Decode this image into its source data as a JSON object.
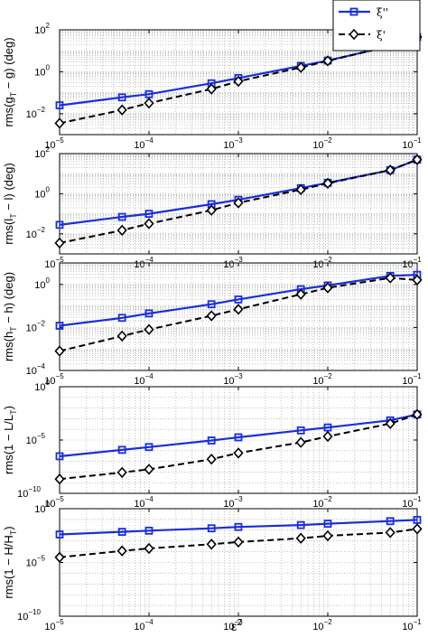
{
  "chart_data": [
    {
      "type": "line",
      "ylabel": "rms(g_T − g) (deg)",
      "ylabel_parts": {
        "pre": "rms(g",
        "sub": "T",
        "post": " − g) (deg)"
      },
      "xscale": "log",
      "yscale": "log",
      "xlim": [
        1e-05,
        0.1
      ],
      "ylim": [
        0.001,
        100
      ],
      "x_tick_labels": [
        "10−5",
        "10−4",
        "10−3",
        "10−2",
        "10−1"
      ],
      "y_ticks": [
        {
          "exp": "2",
          "value": 100
        },
        {
          "exp": "0",
          "value": 1
        },
        {
          "exp": "−2",
          "value": 0.01
        }
      ],
      "grid": true,
      "series": [
        {
          "x": [
            1e-05,
            5e-05,
            0.0001,
            0.0005,
            0.001,
            0.005,
            0.01,
            0.05,
            0.1
          ],
          "y": [
            0.025,
            0.06,
            0.085,
            0.28,
            0.5,
            1.9,
            3.4,
            17,
            45
          ]
        },
        {
          "x": [
            1e-05,
            5e-05,
            0.0001,
            0.0005,
            0.001,
            0.005,
            0.01,
            0.05,
            0.1
          ],
          "y": [
            0.0035,
            0.015,
            0.032,
            0.15,
            0.35,
            1.6,
            3.3,
            17,
            45
          ]
        }
      ]
    },
    {
      "type": "line",
      "ylabel": "rms(l_T − l) (deg)",
      "ylabel_parts": {
        "pre": "rms(l",
        "sub": "T",
        "post": " − l) (deg)"
      },
      "xscale": "log",
      "yscale": "log",
      "xlim": [
        1e-05,
        0.1
      ],
      "ylim": [
        0.001,
        100
      ],
      "x_tick_labels": [
        "10−5",
        "10−4",
        "10−3",
        "10−2",
        "10−1"
      ],
      "y_ticks": [
        {
          "exp": "2",
          "value": 100
        },
        {
          "exp": "0",
          "value": 1
        },
        {
          "exp": "−2",
          "value": 0.01
        }
      ],
      "grid": true,
      "series": [
        {
          "x": [
            1e-05,
            5e-05,
            0.0001,
            0.0005,
            0.001,
            0.005,
            0.01,
            0.05,
            0.1
          ],
          "y": [
            0.028,
            0.07,
            0.1,
            0.3,
            0.5,
            1.9,
            3.5,
            15,
            50
          ]
        },
        {
          "x": [
            1e-05,
            5e-05,
            0.0001,
            0.0005,
            0.001,
            0.005,
            0.01,
            0.05,
            0.1
          ],
          "y": [
            0.0035,
            0.015,
            0.032,
            0.15,
            0.35,
            1.6,
            3.3,
            15,
            50
          ]
        }
      ]
    },
    {
      "type": "line",
      "ylabel": "rms(h_T − h) (deg)",
      "ylabel_parts": {
        "pre": "rms(h",
        "sub": "T",
        "post": " − h) (deg)"
      },
      "xscale": "log",
      "yscale": "log",
      "xlim": [
        1e-05,
        0.1
      ],
      "ylim": [
        0.0001,
        10
      ],
      "x_tick_labels": [
        "10−5",
        "10−4",
        "10−3",
        "10−2",
        "10−1"
      ],
      "y_ticks": [
        {
          "exp": "0",
          "value": 1
        },
        {
          "exp": "−2",
          "value": 0.01
        },
        {
          "exp": "−4",
          "value": 0.0001
        }
      ],
      "grid": true,
      "series": [
        {
          "x": [
            1e-05,
            5e-05,
            0.0001,
            0.0005,
            0.001,
            0.005,
            0.01,
            0.05,
            0.1
          ],
          "y": [
            0.012,
            0.028,
            0.045,
            0.12,
            0.2,
            0.6,
            0.9,
            2.5,
            2.8
          ]
        },
        {
          "x": [
            1e-05,
            5e-05,
            0.0001,
            0.0005,
            0.001,
            0.005,
            0.01,
            0.05,
            0.1
          ],
          "y": [
            0.0008,
            0.004,
            0.008,
            0.035,
            0.07,
            0.35,
            0.7,
            2.0,
            1.6
          ]
        }
      ]
    },
    {
      "type": "line",
      "ylabel": "rms(1 − L/L_T)",
      "ylabel_parts": {
        "pre": "rms(1 − L/L",
        "sub": "T",
        "post": ")"
      },
      "xscale": "log",
      "yscale": "log",
      "xlim": [
        1e-05,
        0.1
      ],
      "ylim": [
        1e-10,
        1
      ],
      "x_tick_labels": [
        "10−5",
        "10−4",
        "10−3",
        "10−2",
        "10−1"
      ],
      "y_ticks": [
        {
          "exp": "0",
          "value": 1
        },
        {
          "exp": "−5",
          "value": 1e-05
        },
        {
          "exp": "−10",
          "value": 1e-10
        }
      ],
      "grid": true,
      "series": [
        {
          "x": [
            1e-05,
            5e-05,
            0.0001,
            0.0005,
            0.001,
            0.005,
            0.01,
            0.05,
            0.1
          ],
          "y": [
            3e-07,
            1.2e-06,
            2.2e-06,
            9e-06,
            1.8e-05,
            8e-05,
            0.00015,
            0.0007,
            0.0025
          ]
        },
        {
          "x": [
            1e-05,
            5e-05,
            0.0001,
            0.0005,
            0.001,
            0.005,
            0.01,
            0.05,
            0.1
          ],
          "y": [
            2.2e-09,
            9e-09,
            1.8e-08,
            1.6e-07,
            6e-07,
            6e-06,
            2.2e-05,
            0.00035,
            0.0025
          ]
        }
      ]
    },
    {
      "type": "line",
      "ylabel": "rms(1 − H/H_T)",
      "ylabel_parts": {
        "pre": "rms(1 − H/H",
        "sub": "T",
        "post": ")"
      },
      "xscale": "log",
      "yscale": "log",
      "xlim": [
        1e-05,
        0.1
      ],
      "ylim": [
        1e-10,
        1
      ],
      "x_tick_labels": [
        "10−5",
        "10−4",
        "10−3",
        "10−2",
        "10−1"
      ],
      "y_ticks": [
        {
          "exp": "0",
          "value": 1
        },
        {
          "exp": "−5",
          "value": 1e-05
        },
        {
          "exp": "−10",
          "value": 1e-10
        }
      ],
      "grid": true,
      "series": [
        {
          "x": [
            1e-05,
            5e-05,
            0.0001,
            0.0005,
            0.001,
            0.005,
            0.01,
            0.05,
            0.1
          ],
          "y": [
            0.004,
            0.007,
            0.009,
            0.015,
            0.02,
            0.03,
            0.04,
            0.07,
            0.09
          ]
        },
        {
          "x": [
            1e-05,
            5e-05,
            0.0001,
            0.0005,
            0.001,
            0.005,
            0.01,
            0.05,
            0.1
          ],
          "y": [
            3e-05,
            0.00012,
            0.0002,
            0.0005,
            0.0008,
            0.0018,
            0.003,
            0.006,
            0.013
          ]
        }
      ]
    }
  ],
  "xlabel": "ε²",
  "xlabel_parts": {
    "base": "ε",
    "sup": "2"
  },
  "legend": {
    "placement": "top-right",
    "entries": [
      {
        "label": "ξ'' (blue, square markers, solid)"
      },
      {
        "label": "ξ' (black, diamond markers, dashed)"
      }
    ]
  },
  "colors": {
    "series_a": "#1a2ed8",
    "series_b": "#000000",
    "grid": "#9a9a9a"
  }
}
